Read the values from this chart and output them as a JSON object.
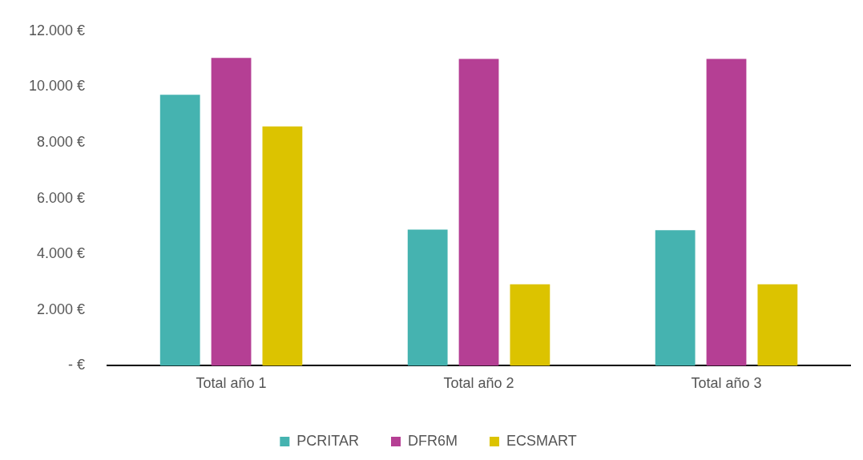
{
  "chart_data": {
    "type": "bar",
    "categories": [
      "Total año 1",
      "Total año 2",
      "Total año 3"
    ],
    "series": [
      {
        "name": "PCRITAR",
        "color": "#45b3b0",
        "values": [
          9720,
          4880,
          4860
        ]
      },
      {
        "name": "DFR6M",
        "color": "#b53f94",
        "values": [
          11040,
          11000,
          11000
        ]
      },
      {
        "name": "ECSMART",
        "color": "#dcc300",
        "values": [
          8580,
          2920,
          2920
        ]
      }
    ],
    "ylim": [
      0,
      12000
    ],
    "yticks": [
      {
        "value": 0,
        "label": "- €"
      },
      {
        "value": 2000,
        "label": "2.000 €"
      },
      {
        "value": 4000,
        "label": "4.000 €"
      },
      {
        "value": 6000,
        "label": "6.000 €"
      },
      {
        "value": 8000,
        "label": "8.000 €"
      },
      {
        "value": 10000,
        "label": "10.000 €"
      },
      {
        "value": 12000,
        "label": "12.000 €"
      }
    ],
    "grid": false,
    "legend": "bottom"
  }
}
